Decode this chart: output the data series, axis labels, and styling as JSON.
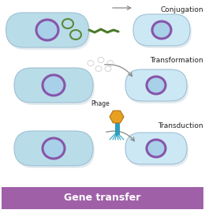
{
  "bg_color": "#ffffff",
  "cell_fill": "#b8dce8",
  "cell_fill_light": "#cce8f4",
  "cell_edge": "#a0c0d4",
  "nucleus_fill": "#a8d0e8",
  "nucleus_edge": "#8855aa",
  "plasmid_color": "#5a8a3a",
  "pilus_color": "#4a7a2a",
  "arrow_color": "#888888",
  "phage_head_color": "#e8a020",
  "phage_head_edge": "#b07010",
  "phage_body_color": "#28a0c0",
  "phage_leg_color": "#28a0c0",
  "label_conjugation": "Conjugation",
  "label_transformation": "Transformation",
  "label_transduction": "Transduction",
  "label_phage": "Phage",
  "footer_text": "Gene transfer",
  "footer_bg": "#a060a8",
  "footer_color": "#ffffff",
  "footer_fontsize": 9,
  "label_fontsize": 6.5,
  "phage_label_fontsize": 5.5,
  "shadow_color": "#c8d8e0"
}
